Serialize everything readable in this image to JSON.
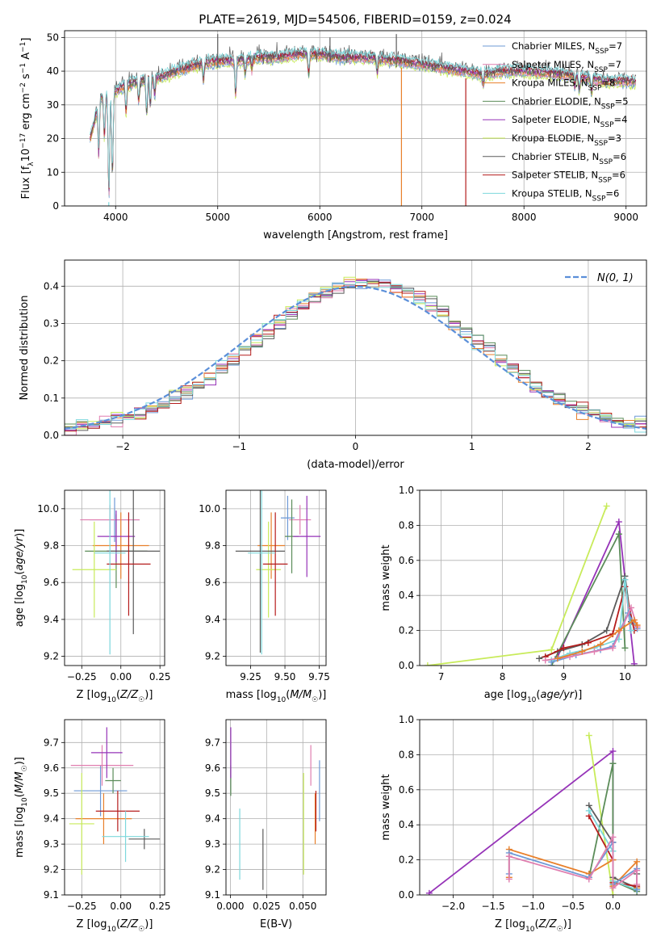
{
  "title": "PLATE=2619, MJD=54506, FIBERID=0159, z=0.024",
  "colors": {
    "chabrier_miles": "#6d99d6",
    "salpeter_miles": "#e07fb0",
    "kroupa_miles": "#e8802b",
    "chabrier_elodie": "#5b8c59",
    "salpeter_elodie": "#9633b8",
    "kroupa_elodie": "#c8eb5a",
    "chabrier_stelib": "#5b5b5b",
    "salpeter_stelib": "#b51c1c",
    "kroupa_stelib": "#7dd8dc",
    "gaussian": "#5b8fd9"
  },
  "chart_data": [
    {
      "id": "spectrum",
      "type": "line",
      "title": "PLATE=2619, MJD=54506, FIBERID=0159, z=0.024",
      "xlabel": "wavelength [Angstrom, rest frame]",
      "ylabel": "Flux [f_λ10^-17 erg cm^-2 s^-1 A^-1]",
      "xlim": [
        3500,
        9200
      ],
      "ylim": [
        0,
        52
      ],
      "xticks": [
        4000,
        5000,
        6000,
        7000,
        8000,
        9000
      ],
      "yticks": [
        0,
        10,
        20,
        30,
        40,
        50
      ],
      "legend_position": "top-right",
      "legend": [
        {
          "label": "Chabrier MILES, N",
          "sub": "SSP",
          "eq": "=7",
          "color_key": "chabrier_miles"
        },
        {
          "label": "Salpeter MILES, N",
          "sub": "SSP",
          "eq": "=7",
          "color_key": "salpeter_miles"
        },
        {
          "label": "Kroupa MILES, N",
          "sub": "SSP",
          "eq": "=8",
          "color_key": "kroupa_miles"
        },
        {
          "label": "Chabrier ELODIE, N",
          "sub": "SSP",
          "eq": "=5",
          "color_key": "chabrier_elodie"
        },
        {
          "label": "Salpeter ELODIE, N",
          "sub": "SSP",
          "eq": "=4",
          "color_key": "salpeter_elodie"
        },
        {
          "label": "Kroupa ELODIE, N",
          "sub": "SSP",
          "eq": "=3",
          "color_key": "kroupa_elodie"
        },
        {
          "label": "Chabrier STELIB, N",
          "sub": "SSP",
          "eq": "=6",
          "color_key": "chabrier_stelib"
        },
        {
          "label": "Salpeter STELIB, N",
          "sub": "SSP",
          "eq": "=6",
          "color_key": "salpeter_stelib"
        },
        {
          "label": "Kroupa STELIB, N",
          "sub": "SSP",
          "eq": "=6",
          "color_key": "kroupa_stelib"
        }
      ],
      "continuum": {
        "x": [
          3750,
          3850,
          3950,
          4050,
          4200,
          4400,
          4600,
          4800,
          5000,
          5200,
          5400,
          5600,
          5800,
          6000,
          6200,
          6400,
          6600,
          6800,
          7000,
          7200,
          7400,
          7600,
          7800,
          8000,
          8200,
          8400,
          8600,
          8800,
          9000,
          9100
        ],
        "y": [
          20,
          32,
          33,
          35,
          37,
          38,
          40,
          42,
          43,
          43,
          44,
          44,
          45,
          45,
          44,
          44,
          43.5,
          43,
          42,
          41,
          40,
          39,
          40,
          40,
          39.5,
          39,
          38,
          37,
          37,
          37
        ]
      },
      "features": [
        {
          "x": 3835,
          "depth": 15
        },
        {
          "x": 3890,
          "depth": 12
        },
        {
          "x": 3934,
          "depth": 30
        },
        {
          "x": 3969,
          "depth": 24
        },
        {
          "x": 4102,
          "depth": 8
        },
        {
          "x": 4226,
          "depth": 6
        },
        {
          "x": 4304,
          "depth": 10
        },
        {
          "x": 4340,
          "depth": 8
        },
        {
          "x": 4383,
          "depth": 5
        },
        {
          "x": 4861,
          "depth": 5
        },
        {
          "x": 5175,
          "depth": 10
        },
        {
          "x": 5270,
          "depth": 4
        },
        {
          "x": 5335,
          "depth": 3
        },
        {
          "x": 5892,
          "depth": 6
        },
        {
          "x": 6563,
          "depth": 4
        },
        {
          "x": 7600,
          "depth": 3
        },
        {
          "x": 8498,
          "depth": 3
        },
        {
          "x": 8542,
          "depth": 4
        },
        {
          "x": 8662,
          "depth": 4
        }
      ],
      "spikes": [
        {
          "x": 3933,
          "y": 0,
          "color_key": "kroupa_stelib"
        },
        {
          "x": 6800,
          "y": 0,
          "color_key": "kroupa_miles"
        },
        {
          "x": 7430,
          "y": 0,
          "color_key": "salpeter_stelib"
        },
        {
          "x": 6750,
          "y": 51,
          "color_key": "chabrier_stelib"
        },
        {
          "x": 5000,
          "y": 51,
          "color_key": "chabrier_stelib"
        },
        {
          "x": 6100,
          "y": 50,
          "color_key": "chabrier_stelib"
        }
      ]
    },
    {
      "id": "residuals",
      "type": "line",
      "xlabel": "(data-model)/error",
      "ylabel": "Normed distribution",
      "xlim": [
        -2.5,
        2.5
      ],
      "ylim": [
        0,
        0.47
      ],
      "xticks": [
        -2,
        -1,
        0,
        1,
        2
      ],
      "yticks": [
        0.0,
        0.1,
        0.2,
        0.3,
        0.4
      ],
      "legend_position": "top-right",
      "gaussian_label": "N(0, 1)",
      "bin_width": 0.1
    },
    {
      "id": "age_vs_z",
      "type": "scatter",
      "xlabel": "Z [log10(Z/Z☉)]",
      "ylabel": "age [log10(age/yr)]",
      "xlim": [
        -0.36,
        0.28
      ],
      "ylim": [
        9.15,
        10.1
      ],
      "xticks": [
        -0.25,
        0.0,
        0.25
      ],
      "yticks": [
        9.2,
        9.4,
        9.6,
        9.8,
        10.0
      ],
      "points": [
        {
          "key": "chabrier_miles",
          "x": -0.04,
          "xerr": 0.16,
          "y": 9.94,
          "yerr": 0.12
        },
        {
          "key": "salpeter_miles",
          "x": -0.07,
          "xerr": 0.19,
          "y": 9.94,
          "yerr": 0.08
        },
        {
          "key": "kroupa_miles",
          "x": 0.0,
          "xerr": 0.18,
          "y": 9.8,
          "yerr": 0.18
        },
        {
          "key": "chabrier_elodie",
          "x": -0.03,
          "xerr": 0.2,
          "y": 9.77,
          "yerr": 0.2
        },
        {
          "key": "salpeter_elodie",
          "x": -0.03,
          "xerr": 0.12,
          "y": 9.85,
          "yerr": 0.14
        },
        {
          "key": "kroupa_elodie",
          "x": -0.17,
          "xerr": 0.14,
          "y": 9.67,
          "yerr": 0.26
        },
        {
          "key": "chabrier_stelib",
          "x": 0.08,
          "xerr": 0.17,
          "y": 9.77,
          "yerr": 0.45
        },
        {
          "key": "salpeter_stelib",
          "x": 0.05,
          "xerr": 0.14,
          "y": 9.7,
          "yerr": 0.28
        },
        {
          "key": "kroupa_stelib",
          "x": -0.07,
          "xerr": 0.1,
          "y": 9.76,
          "yerr": 0.55
        }
      ]
    },
    {
      "id": "age_vs_mass",
      "type": "scatter",
      "xlabel": "mass [log10(M/M☉)]",
      "xlim": [
        9.07,
        9.8
      ],
      "ylim": [
        9.15,
        10.1
      ],
      "xticks": [
        9.25,
        9.5,
        9.75
      ],
      "yticks": [
        9.2,
        9.4,
        9.6,
        9.8,
        10.0
      ],
      "points": [
        {
          "key": "chabrier_miles",
          "x": 9.52,
          "xerr": 0.05,
          "y": 9.95,
          "yerr": 0.12
        },
        {
          "key": "salpeter_miles",
          "x": 9.61,
          "xerr": 0.08,
          "y": 9.94,
          "yerr": 0.08
        },
        {
          "key": "kroupa_miles",
          "x": 9.4,
          "xerr": 0.1,
          "y": 9.8,
          "yerr": 0.18
        },
        {
          "key": "chabrier_elodie",
          "x": 9.55,
          "xerr": 0.05,
          "y": 9.85,
          "yerr": 0.2
        },
        {
          "key": "salpeter_elodie",
          "x": 9.66,
          "xerr": 0.1,
          "y": 9.85,
          "yerr": 0.22
        },
        {
          "key": "kroupa_elodie",
          "x": 9.38,
          "xerr": 0.09,
          "y": 9.67,
          "yerr": 0.26
        },
        {
          "key": "chabrier_stelib",
          "x": 9.32,
          "xerr": 0.18,
          "y": 9.77,
          "yerr": 0.55
        },
        {
          "key": "salpeter_stelib",
          "x": 9.43,
          "xerr": 0.09,
          "y": 9.7,
          "yerr": 0.28
        },
        {
          "key": "kroupa_stelib",
          "x": 9.33,
          "xerr": 0.1,
          "y": 9.76,
          "yerr": 0.55
        }
      ]
    },
    {
      "id": "weight_vs_age",
      "type": "line",
      "xlabel": "age [log10(age/yr)]",
      "ylabel": "mass weight",
      "xlim": [
        6.65,
        10.35
      ],
      "ylim": [
        0,
        1.0
      ],
      "xticks": [
        7,
        8,
        9,
        10
      ],
      "yticks": [
        0.0,
        0.2,
        0.4,
        0.6,
        0.8,
        1.0
      ],
      "series": [
        {
          "key": "kroupa_elodie",
          "x": [
            6.78,
            8.8,
            9.7
          ],
          "y": [
            0.0,
            0.09,
            0.91
          ]
        },
        {
          "key": "salpeter_elodie",
          "x": [
            8.9,
            9.9,
            10.15
          ],
          "y": [
            0.05,
            0.82,
            0.01
          ]
        },
        {
          "key": "chabrier_elodie",
          "x": [
            8.8,
            9.9,
            10.0
          ],
          "y": [
            0.0,
            0.75,
            0.1
          ]
        },
        {
          "key": "chabrier_stelib",
          "x": [
            8.6,
            8.9,
            9.3,
            9.7,
            10.0,
            10.1
          ],
          "y": [
            0.04,
            0.08,
            0.12,
            0.2,
            0.51,
            0.25
          ]
        },
        {
          "key": "salpeter_stelib",
          "x": [
            8.7,
            9.0,
            9.4,
            9.8,
            10.0,
            10.15
          ],
          "y": [
            0.05,
            0.1,
            0.13,
            0.18,
            0.45,
            0.2
          ]
        },
        {
          "key": "kroupa_stelib",
          "x": [
            8.8,
            9.1,
            9.5,
            9.9,
            10.0,
            10.1
          ],
          "y": [
            0.03,
            0.07,
            0.1,
            0.15,
            0.49,
            0.2
          ]
        },
        {
          "key": "chabrier_miles",
          "x": [
            8.8,
            9.2,
            9.6,
            9.8,
            10.05,
            10.2
          ],
          "y": [
            0.02,
            0.06,
            0.09,
            0.11,
            0.3,
            0.21
          ]
        },
        {
          "key": "salpeter_miles",
          "x": [
            8.7,
            9.1,
            9.5,
            9.8,
            10.1,
            10.2
          ],
          "y": [
            0.03,
            0.05,
            0.08,
            0.1,
            0.33,
            0.22
          ]
        },
        {
          "key": "kroupa_miles",
          "x": [
            8.9,
            9.3,
            9.6,
            9.9,
            10.15,
            10.2
          ],
          "y": [
            0.04,
            0.08,
            0.12,
            0.2,
            0.26,
            0.23
          ]
        }
      ]
    },
    {
      "id": "mass_vs_z",
      "type": "scatter",
      "xlabel": "Z [log10(Z/Z☉)]",
      "ylabel": "mass [log10(M/M☉)]",
      "xlim": [
        -0.36,
        0.28
      ],
      "ylim": [
        9.1,
        9.79
      ],
      "xticks": [
        -0.25,
        0.0,
        0.25
      ],
      "yticks": [
        9.1,
        9.2,
        9.3,
        9.4,
        9.5,
        9.6,
        9.7
      ],
      "points": [
        {
          "key": "chabrier_miles",
          "x": -0.13,
          "xerr": 0.17,
          "y": 9.51,
          "yerr": 0.1
        },
        {
          "key": "salpeter_miles",
          "x": -0.12,
          "xerr": 0.2,
          "y": 9.61,
          "yerr": 0.08
        },
        {
          "key": "kroupa_miles",
          "x": -0.11,
          "xerr": 0.18,
          "y": 9.4,
          "yerr": 0.1
        },
        {
          "key": "chabrier_elodie",
          "x": -0.05,
          "xerr": 0.05,
          "y": 9.55,
          "yerr": 0.05
        },
        {
          "key": "salpeter_elodie",
          "x": -0.09,
          "xerr": 0.1,
          "y": 9.66,
          "yerr": 0.1
        },
        {
          "key": "kroupa_elodie",
          "x": -0.25,
          "xerr": 0.08,
          "y": 9.38,
          "yerr": 0.2
        },
        {
          "key": "chabrier_stelib",
          "x": 0.15,
          "xerr": 0.1,
          "y": 9.32,
          "yerr": 0.04
        },
        {
          "key": "salpeter_stelib",
          "x": -0.02,
          "xerr": 0.14,
          "y": 9.43,
          "yerr": 0.08
        },
        {
          "key": "kroupa_stelib",
          "x": 0.03,
          "xerr": 0.15,
          "y": 9.33,
          "yerr": 0.1
        }
      ]
    },
    {
      "id": "mass_vs_ebv",
      "type": "scatter",
      "xlabel": "E(B-V)",
      "xlim": [
        -0.003,
        0.066
      ],
      "ylim": [
        9.1,
        9.79
      ],
      "xticks": [
        0.0,
        0.025,
        0.05
      ],
      "xticklabels": [
        "0.000",
        "0.025",
        "0.050"
      ],
      "yticks": [
        9.1,
        9.2,
        9.3,
        9.4,
        9.5,
        9.6,
        9.7
      ],
      "points": [
        {
          "key": "chabrier_miles",
          "x": 0.0615,
          "y": 9.51,
          "yerr": 0.12
        },
        {
          "key": "salpeter_miles",
          "x": 0.0555,
          "y": 9.61,
          "yerr": 0.08
        },
        {
          "key": "kroupa_miles",
          "x": 0.0585,
          "y": 9.4,
          "yerr": 0.1
        },
        {
          "key": "chabrier_elodie",
          "x": 0.0003,
          "y": 9.55,
          "yerr": 0.06
        },
        {
          "key": "salpeter_elodie",
          "x": 0.0003,
          "y": 9.66,
          "yerr": 0.1
        },
        {
          "key": "kroupa_elodie",
          "x": 0.0505,
          "y": 9.38,
          "yerr": 0.2
        },
        {
          "key": "chabrier_stelib",
          "x": 0.0225,
          "y": 9.24,
          "yerr": 0.12
        },
        {
          "key": "salpeter_stelib",
          "x": 0.059,
          "y": 9.43,
          "yerr": 0.08
        },
        {
          "key": "kroupa_stelib",
          "x": 0.0065,
          "y": 9.3,
          "yerr": 0.14
        }
      ]
    },
    {
      "id": "weight_vs_z",
      "type": "line",
      "xlabel": "Z [log10(Z/Z☉)]",
      "ylabel": "mass weight",
      "xlim": [
        -2.42,
        0.42
      ],
      "ylim": [
        0,
        1.0
      ],
      "xticks": [
        -2.0,
        -1.5,
        -1.0,
        -0.5,
        0.0
      ],
      "yticks": [
        0.0,
        0.2,
        0.4,
        0.6,
        0.8,
        1.0
      ],
      "series": [
        {
          "key": "salpeter_elodie",
          "x": [
            -2.3,
            0.0,
            0.0,
            0.0
          ],
          "y": [
            0.01,
            0.82,
            0.05,
            0.3
          ]
        },
        {
          "key": "kroupa_elodie",
          "x": [
            -0.3,
            0.0,
            0.0
          ],
          "y": [
            0.91,
            0.0,
            0.09
          ]
        },
        {
          "key": "chabrier_elodie",
          "x": [
            -0.3,
            0.0,
            0.0,
            0.3
          ],
          "y": [
            0.1,
            0.75,
            0.08,
            0.02
          ]
        },
        {
          "key": "chabrier_stelib",
          "x": [
            -0.3,
            0.0,
            0.0,
            0.3,
            0.3
          ],
          "y": [
            0.51,
            0.3,
            0.1,
            0.04,
            0.12
          ]
        },
        {
          "key": "salpeter_stelib",
          "x": [
            -0.3,
            0.0,
            0.0,
            0.3
          ],
          "y": [
            0.45,
            0.2,
            0.07,
            0.05
          ]
        },
        {
          "key": "kroupa_stelib",
          "x": [
            -0.3,
            0.0,
            0.0,
            0.3
          ],
          "y": [
            0.48,
            0.25,
            0.08,
            0.03
          ]
        },
        {
          "key": "kroupa_miles",
          "x": [
            -1.3,
            -1.3,
            -0.3,
            0.0,
            0.0,
            0.3,
            0.3
          ],
          "y": [
            0.1,
            0.26,
            0.12,
            0.2,
            0.05,
            0.19,
            0.04
          ]
        },
        {
          "key": "chabrier_miles",
          "x": [
            -1.3,
            -1.3,
            -0.3,
            0.0,
            0.0,
            0.3,
            0.3
          ],
          "y": [
            0.12,
            0.24,
            0.1,
            0.3,
            0.06,
            0.15,
            0.03
          ]
        },
        {
          "key": "salpeter_miles",
          "x": [
            -1.3,
            -1.3,
            -0.3,
            0.0,
            0.0,
            0.3,
            0.3
          ],
          "y": [
            0.09,
            0.22,
            0.09,
            0.33,
            0.04,
            0.14,
            0.06
          ]
        }
      ]
    }
  ]
}
